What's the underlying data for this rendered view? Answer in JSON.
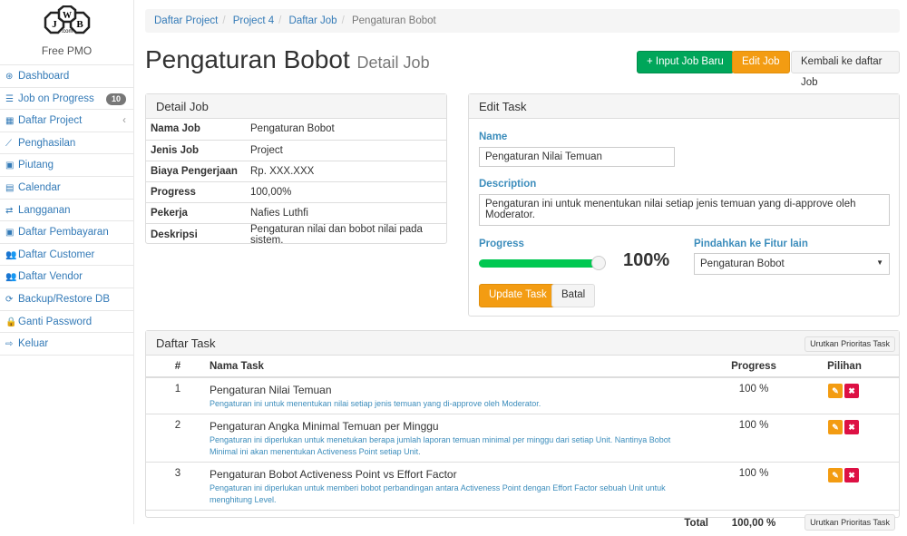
{
  "sidebar": {
    "brand": "Free PMO",
    "logo_text": "JWB.com",
    "items": [
      {
        "label": "Dashboard",
        "icon": "dashboard-icon",
        "glyph": "⊛"
      },
      {
        "label": "Job on Progress",
        "icon": "tasks-icon",
        "glyph": "☰",
        "badge": "10"
      },
      {
        "label": "Daftar Project",
        "icon": "table-icon",
        "glyph": "▦",
        "chevron": "‹"
      },
      {
        "label": "Penghasilan",
        "icon": "line-chart-icon",
        "glyph": "⟋"
      },
      {
        "label": "Piutang",
        "icon": "money-icon",
        "glyph": "▣"
      },
      {
        "label": "Calendar",
        "icon": "calendar-icon",
        "glyph": "▤"
      },
      {
        "label": "Langganan",
        "icon": "retweet-icon",
        "glyph": "⇄"
      },
      {
        "label": "Daftar Pembayaran",
        "icon": "money-icon",
        "glyph": "▣"
      },
      {
        "label": "Daftar Customer",
        "icon": "users-icon",
        "glyph": "👥"
      },
      {
        "label": "Daftar Vendor",
        "icon": "users-icon",
        "glyph": "👥"
      },
      {
        "label": "Backup/Restore DB",
        "icon": "refresh-icon",
        "glyph": "⟳"
      },
      {
        "label": "Ganti Password",
        "icon": "lock-icon",
        "glyph": "🔒"
      },
      {
        "label": "Keluar",
        "icon": "sign-out-icon",
        "glyph": "⇨"
      }
    ]
  },
  "breadcrumb": [
    "Daftar Project",
    "Project 4",
    "Daftar Job",
    "Pengaturan Bobot"
  ],
  "page": {
    "title": "Pengaturan Bobot",
    "subtitle": "Detail Job"
  },
  "buttons": {
    "new_job": "+ Input Job Baru",
    "edit_job": "Edit Job",
    "back": "Kembali ke daftar Job"
  },
  "detail": {
    "header": "Detail Job",
    "rows": [
      {
        "k": "Nama Job",
        "v": "Pengaturan Bobot"
      },
      {
        "k": "Jenis Job",
        "v": "Project"
      },
      {
        "k": "Biaya Pengerjaan",
        "v": "Rp. XXX.XXX"
      },
      {
        "k": "Progress",
        "v": "100,00%"
      },
      {
        "k": "Pekerja",
        "v": "Nafies Luthfi"
      },
      {
        "k": "Deskripsi",
        "v": "Pengaturan nilai dan bobot nilai pada sistem."
      }
    ]
  },
  "edit": {
    "header": "Edit Task",
    "name_label": "Name",
    "name_value": "Pengaturan Nilai Temuan",
    "desc_label": "Description",
    "desc_value": "Pengaturan ini untuk menentukan nilai setiap jenis temuan yang di-approve oleh Moderator.",
    "progress_label": "Progress",
    "progress_value": 100,
    "progress_text": "100%",
    "move_label": "Pindahkan ke Fitur lain",
    "move_value": "Pengaturan Bobot",
    "update": "Update Task",
    "cancel": "Batal",
    "colors": {
      "progress": "#00c851"
    }
  },
  "tasks": {
    "header": "Daftar Task",
    "sort_button": "Urutkan Prioritas Task",
    "cols": [
      "#",
      "Nama Task",
      "Progress",
      "Pilihan"
    ],
    "rows": [
      {
        "no": "1",
        "name": "Pengaturan Nilai Temuan",
        "desc": "Pengaturan ini untuk menentukan nilai setiap jenis temuan yang di-approve oleh Moderator.",
        "progress": "100 %"
      },
      {
        "no": "2",
        "name": "Pengaturan Angka Minimal Temuan per Minggu",
        "desc": "Pengaturan ini diperlukan untuk menetukan berapa jumlah laporan temuan minimal per minggu dari setiap Unit. Nantinya Bobot Minimal ini akan menentukan Activeness Point setiap Unit.",
        "progress": "100 %"
      },
      {
        "no": "3",
        "name": "Pengaturan Bobot Activeness Point vs Effort Factor",
        "desc": "Pengaturan ini diperlukan untuk memberi bobot perbandingan antara Activeness Point dengan Effort Factor sebuah Unit untuk menghitung Level.",
        "progress": "100 %"
      }
    ],
    "total_label": "Total",
    "total_value": "100,00 %"
  }
}
